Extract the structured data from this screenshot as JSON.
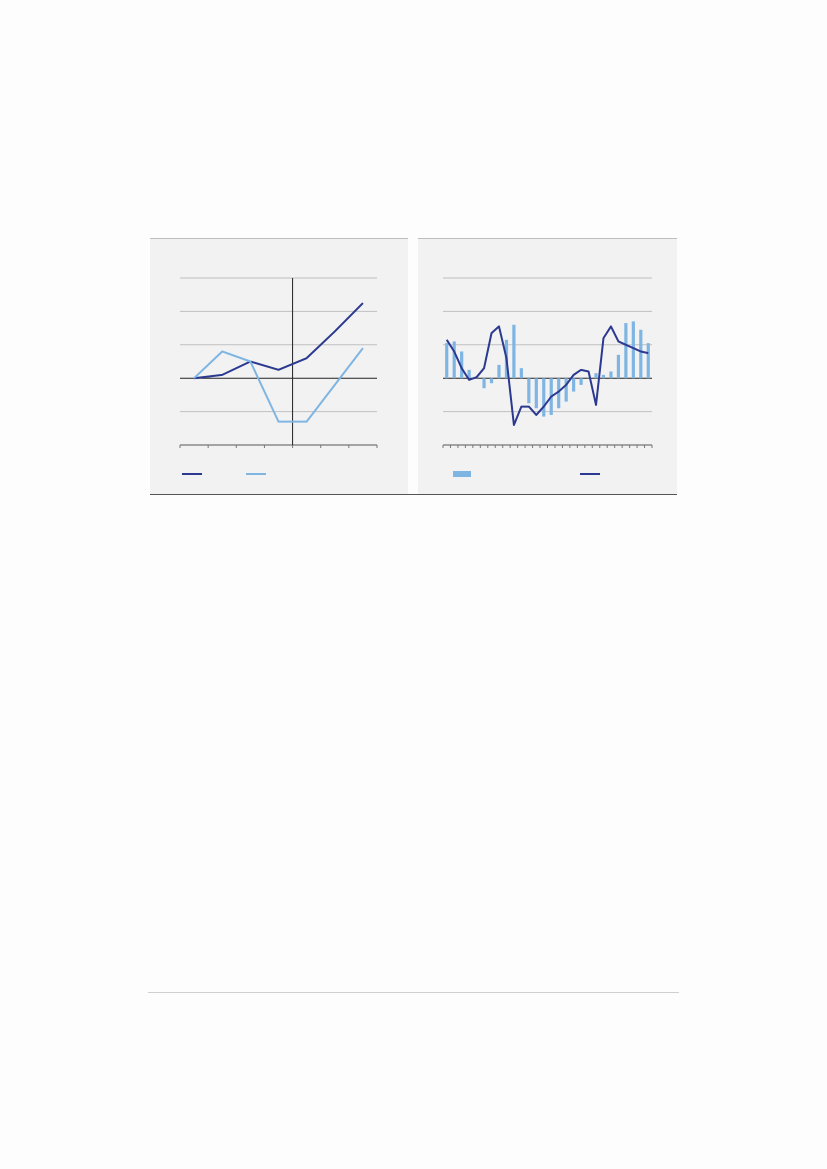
{
  "chart_data": [
    {
      "type": "line",
      "categories": [
        null,
        null,
        null,
        null,
        null,
        null,
        null
      ],
      "ylim": [
        -2,
        3
      ],
      "yticks": [
        -2,
        -1,
        0,
        1,
        2,
        3
      ],
      "grid": true,
      "series": [
        {
          "type": "line",
          "color": "#2b3990",
          "values": [
            0,
            0.1,
            0.5,
            0.25,
            0.6,
            1.4,
            2.25
          ]
        },
        {
          "type": "line",
          "color": "#7fb5e3",
          "values": [
            0,
            0.8,
            0.5,
            -1.3,
            -1.3,
            -0.2,
            0.9
          ]
        }
      ]
    },
    {
      "type": "combo",
      "categories": [
        null,
        null,
        null,
        null,
        null,
        null,
        null,
        null,
        null,
        null,
        null,
        null,
        null,
        null,
        null,
        null,
        null,
        null,
        null,
        null,
        null,
        null,
        null,
        null,
        null,
        null,
        null,
        null
      ],
      "ylim": [
        -2,
        3
      ],
      "yticks": [
        -2,
        -1,
        0,
        1,
        2,
        3
      ],
      "grid": true,
      "series": [
        {
          "type": "bar",
          "color": "#7fb5e3",
          "values": [
            1.05,
            1.1,
            0.8,
            0.25,
            0.05,
            -0.3,
            -0.15,
            0.4,
            1.15,
            1.6,
            0.3,
            -0.75,
            -0.9,
            -1.15,
            -1.1,
            -0.9,
            -0.7,
            -0.4,
            -0.2,
            0.03,
            0.15,
            0.1,
            0.2,
            0.7,
            1.65,
            1.7,
            1.45,
            1.05
          ]
        },
        {
          "type": "line",
          "color": "#2b3990",
          "values": [
            1.15,
            0.8,
            0.3,
            -0.05,
            0.03,
            0.3,
            1.35,
            1.55,
            0.6,
            -1.4,
            -0.85,
            -0.85,
            -1.1,
            -0.85,
            -0.55,
            -0.4,
            -0.2,
            0.1,
            0.25,
            0.2,
            -0.8,
            1.2,
            1.55,
            1.1,
            1.0,
            0.9,
            0.8,
            0.75
          ]
        }
      ]
    }
  ]
}
